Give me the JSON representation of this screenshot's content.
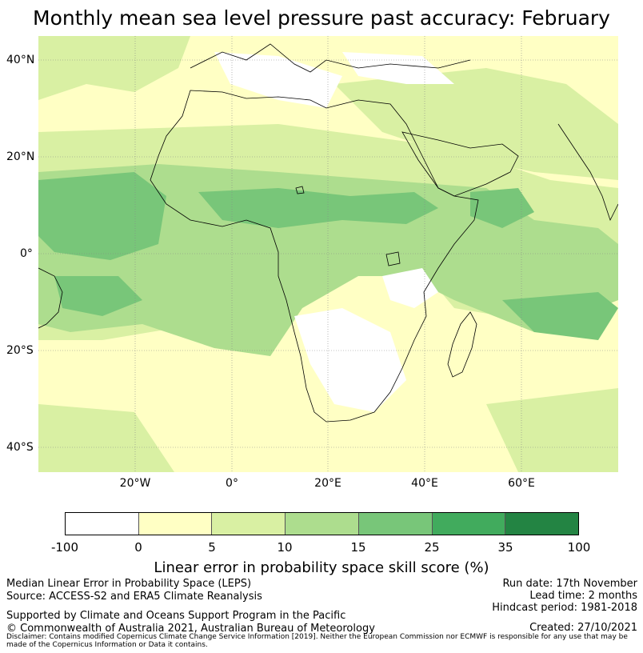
{
  "title": "Monthly mean sea level pressure past accuracy: February",
  "map": {
    "lat_ticks": [
      "40°N",
      "20°N",
      "0°",
      "20°S",
      "40°S"
    ],
    "lon_ticks": [
      "20°W",
      "0°",
      "20°E",
      "40°E",
      "60°E"
    ],
    "lat_range": [
      -45,
      45
    ],
    "lon_range": [
      -40,
      80
    ]
  },
  "colorbar": {
    "title": "Linear error in probability space skill score (%)",
    "ticks": [
      "-100",
      "0",
      "5",
      "10",
      "15",
      "25",
      "35",
      "100"
    ],
    "colors": [
      "#ffffff",
      "#ffffc4",
      "#d9f0a3",
      "#addd8e",
      "#78c679",
      "#41ab5d",
      "#238443"
    ]
  },
  "footer": {
    "left1": "Median Linear Error in Probability Space (LEPS)",
    "left2": "Source: ACCESS-S2 and ERA5 Climate Reanalysis",
    "left3": "Supported by Climate and Oceans Support Program in the Pacific",
    "left4": "© Commonwealth of Australia 2021, Australian Bureau of Meteorology",
    "right1": "Run date: 17th November",
    "right2": "Lead time: 2 months",
    "right3": "Hindcast period: 1981-2018",
    "right4": "Created: 27/10/2021",
    "disclaimer": "Disclaimer: Contains modified Copernicus Climate Change Service Information [2019]. Neither the European Commission nor ECMWF is responsible for any use that may be made of the Copernicus Information or Data it contains."
  }
}
